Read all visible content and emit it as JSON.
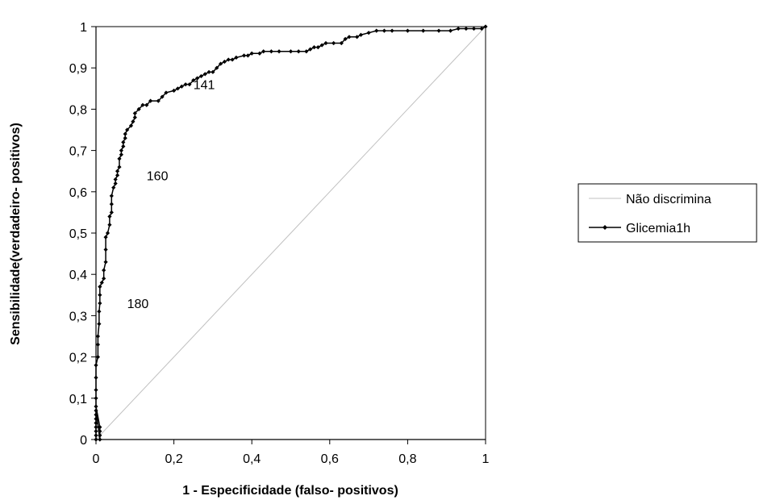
{
  "chart_data": {
    "type": "line",
    "title": "",
    "xlabel": "1 - Especificidade (falso- positivos)",
    "ylabel": "Sensibilidade(verdadeiro- positivos)",
    "xlim": [
      0,
      1
    ],
    "ylim": [
      0,
      1
    ],
    "x_ticks": [
      "0",
      "0,2",
      "0,4",
      "0,6",
      "0,8",
      "1"
    ],
    "y_ticks": [
      "0",
      "0,1",
      "0,2",
      "0,3",
      "0,4",
      "0,5",
      "0,6",
      "0,7",
      "0,8",
      "0,9",
      "1"
    ],
    "legend_position": "right",
    "grid": false,
    "series": [
      {
        "name": "Não discrimina",
        "color": "#c0c0c0",
        "marker": "none",
        "points": [
          [
            0,
            0
          ],
          [
            1,
            1
          ]
        ]
      },
      {
        "name": "Glicemia1h",
        "color": "#000000",
        "marker": "diamond",
        "points": [
          [
            0,
            0
          ],
          [
            0,
            0.01
          ],
          [
            0,
            0.02
          ],
          [
            0,
            0.03
          ],
          [
            0,
            0.04
          ],
          [
            0,
            0.05
          ],
          [
            0,
            0.06
          ],
          [
            0,
            0.07
          ],
          [
            0.01,
            0.0
          ],
          [
            0.01,
            0.01
          ],
          [
            0.01,
            0.02
          ],
          [
            0.01,
            0.03
          ],
          [
            0.0,
            0.08
          ],
          [
            0.0,
            0.1
          ],
          [
            0.0,
            0.12
          ],
          [
            0.0,
            0.15
          ],
          [
            0.0,
            0.18
          ],
          [
            0.005,
            0.2
          ],
          [
            0.005,
            0.23
          ],
          [
            0.005,
            0.25
          ],
          [
            0.008,
            0.28
          ],
          [
            0.008,
            0.31
          ],
          [
            0.01,
            0.33
          ],
          [
            0.01,
            0.35
          ],
          [
            0.01,
            0.37
          ],
          [
            0.015,
            0.38
          ],
          [
            0.02,
            0.39
          ],
          [
            0.02,
            0.41
          ],
          [
            0.025,
            0.43
          ],
          [
            0.025,
            0.46
          ],
          [
            0.025,
            0.49
          ],
          [
            0.03,
            0.5
          ],
          [
            0.035,
            0.52
          ],
          [
            0.035,
            0.54
          ],
          [
            0.04,
            0.55
          ],
          [
            0.04,
            0.57
          ],
          [
            0.04,
            0.59
          ],
          [
            0.045,
            0.61
          ],
          [
            0.05,
            0.62
          ],
          [
            0.05,
            0.63
          ],
          [
            0.055,
            0.64
          ],
          [
            0.055,
            0.65
          ],
          [
            0.06,
            0.66
          ],
          [
            0.06,
            0.68
          ],
          [
            0.065,
            0.69
          ],
          [
            0.065,
            0.7
          ],
          [
            0.07,
            0.71
          ],
          [
            0.07,
            0.72
          ],
          [
            0.075,
            0.73
          ],
          [
            0.075,
            0.74
          ],
          [
            0.08,
            0.75
          ],
          [
            0.09,
            0.76
          ],
          [
            0.095,
            0.77
          ],
          [
            0.1,
            0.78
          ],
          [
            0.1,
            0.79
          ],
          [
            0.11,
            0.8
          ],
          [
            0.12,
            0.81
          ],
          [
            0.13,
            0.81
          ],
          [
            0.14,
            0.82
          ],
          [
            0.16,
            0.82
          ],
          [
            0.17,
            0.83
          ],
          [
            0.18,
            0.84
          ],
          [
            0.2,
            0.845
          ],
          [
            0.21,
            0.85
          ],
          [
            0.22,
            0.855
          ],
          [
            0.23,
            0.86
          ],
          [
            0.24,
            0.86
          ],
          [
            0.25,
            0.87
          ],
          [
            0.26,
            0.875
          ],
          [
            0.27,
            0.88
          ],
          [
            0.28,
            0.885
          ],
          [
            0.29,
            0.89
          ],
          [
            0.3,
            0.89
          ],
          [
            0.31,
            0.9
          ],
          [
            0.32,
            0.91
          ],
          [
            0.33,
            0.915
          ],
          [
            0.34,
            0.92
          ],
          [
            0.35,
            0.92
          ],
          [
            0.36,
            0.925
          ],
          [
            0.38,
            0.93
          ],
          [
            0.39,
            0.93
          ],
          [
            0.4,
            0.935
          ],
          [
            0.42,
            0.935
          ],
          [
            0.43,
            0.94
          ],
          [
            0.45,
            0.94
          ],
          [
            0.47,
            0.94
          ],
          [
            0.5,
            0.94
          ],
          [
            0.52,
            0.94
          ],
          [
            0.54,
            0.94
          ],
          [
            0.55,
            0.945
          ],
          [
            0.56,
            0.95
          ],
          [
            0.57,
            0.95
          ],
          [
            0.58,
            0.955
          ],
          [
            0.59,
            0.96
          ],
          [
            0.61,
            0.96
          ],
          [
            0.63,
            0.96
          ],
          [
            0.64,
            0.97
          ],
          [
            0.65,
            0.975
          ],
          [
            0.67,
            0.975
          ],
          [
            0.68,
            0.98
          ],
          [
            0.7,
            0.985
          ],
          [
            0.72,
            0.99
          ],
          [
            0.74,
            0.99
          ],
          [
            0.76,
            0.99
          ],
          [
            0.8,
            0.99
          ],
          [
            0.84,
            0.99
          ],
          [
            0.88,
            0.99
          ],
          [
            0.91,
            0.99
          ],
          [
            0.93,
            0.995
          ],
          [
            0.95,
            0.995
          ],
          [
            0.97,
            0.995
          ],
          [
            0.99,
            0.995
          ],
          [
            1,
            1
          ]
        ]
      }
    ],
    "annotations": [
      {
        "text": "141",
        "x": 0.25,
        "y": 0.86
      },
      {
        "text": "160",
        "x": 0.13,
        "y": 0.64
      },
      {
        "text": "180",
        "x": 0.08,
        "y": 0.33
      }
    ]
  }
}
